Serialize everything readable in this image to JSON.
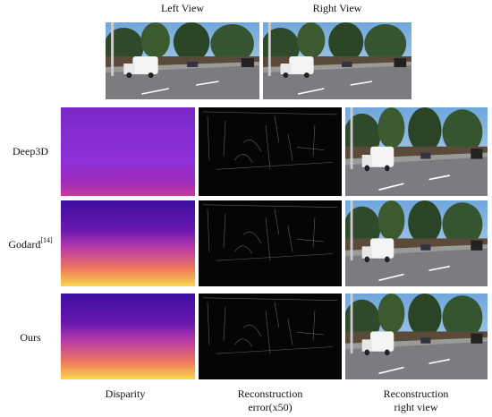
{
  "top_views": [
    "Left View",
    "Right View"
  ],
  "rows": [
    {
      "label": "Deep3D"
    },
    {
      "label": "Godard",
      "citation": "[14]"
    },
    {
      "label": "Ours"
    }
  ],
  "columns": [
    [
      "Disparity"
    ],
    [
      "Reconstruction",
      "error(x50)"
    ],
    [
      "Reconstruction",
      "right view"
    ]
  ]
}
